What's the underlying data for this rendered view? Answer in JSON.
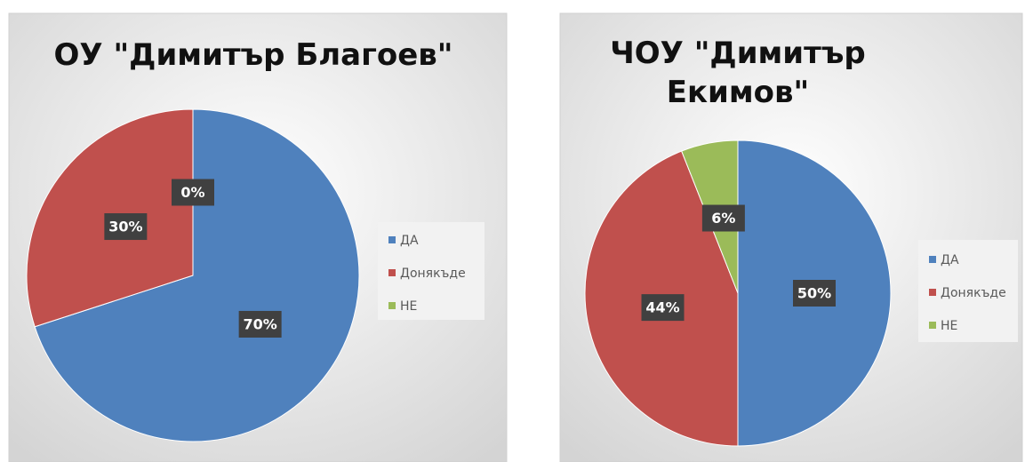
{
  "chart_data": [
    {
      "type": "pie",
      "title": "ОУ \"Димитър Благоев\"",
      "categories": [
        "ДА",
        "Донякъде",
        "НЕ"
      ],
      "values": [
        70,
        30,
        0
      ],
      "value_labels": [
        "70%",
        "30%",
        "0%"
      ],
      "colors": [
        "#4f81bd",
        "#c0504d",
        "#9bbb59"
      ],
      "legend": "right"
    },
    {
      "type": "pie",
      "title": "ЧОУ \"Димитър Екимов\"",
      "categories": [
        "ДА",
        "Донякъде",
        "НЕ"
      ],
      "values": [
        50,
        44,
        6
      ],
      "value_labels": [
        "50%",
        "44%",
        "6%"
      ],
      "colors": [
        "#4f81bd",
        "#c0504d",
        "#9bbb59"
      ],
      "legend": "right"
    }
  ]
}
